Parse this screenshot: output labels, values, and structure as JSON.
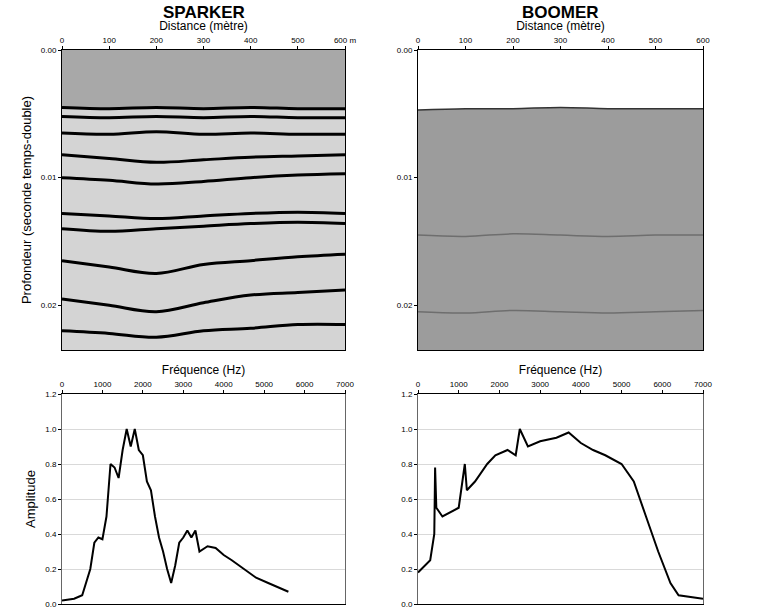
{
  "chart_data": [
    {
      "type": "seismic",
      "title": "SPARKER",
      "xlabel": "Distance (mètre)",
      "ylabel": "Profondeur (seconde temps-double)",
      "xlim": [
        0,
        600
      ],
      "xticks": [
        0,
        100,
        200,
        300,
        400,
        500,
        {
          "value": 600,
          "label": "600 m"
        }
      ],
      "ylim": [
        0,
        0.0235
      ],
      "yticks": [
        {
          "value": 0,
          "label": "0.00"
        },
        0.01,
        0.02
      ],
      "grid": false,
      "x": [
        0,
        100,
        200,
        300,
        400,
        500,
        600
      ],
      "series": [
        {
          "color": "#000000",
          "values": [
            0.0045,
            0.0046,
            0.0045,
            0.0046,
            0.0045,
            0.0046,
            0.0046
          ]
        },
        {
          "color": "#000000",
          "values": [
            0.0052,
            0.0053,
            0.0052,
            0.0053,
            0.0052,
            0.0053,
            0.0053
          ]
        },
        {
          "color": "#000000",
          "values": [
            0.0065,
            0.0066,
            0.0064,
            0.0066,
            0.0065,
            0.0066,
            0.0066
          ]
        },
        {
          "color": "#000000",
          "values": [
            0.0082,
            0.0085,
            0.0088,
            0.0086,
            0.0084,
            0.0083,
            0.0082
          ]
        },
        {
          "color": "#000000",
          "values": [
            0.01,
            0.0102,
            0.0105,
            0.0103,
            0.01,
            0.0098,
            0.0097
          ]
        },
        {
          "color": "#000000",
          "values": [
            0.0128,
            0.013,
            0.0132,
            0.013,
            0.0128,
            0.0127,
            0.0128
          ]
        },
        {
          "color": "#000000",
          "values": [
            0.014,
            0.0142,
            0.014,
            0.0138,
            0.0136,
            0.0135,
            0.0136
          ]
        },
        {
          "color": "#000000",
          "values": [
            0.0165,
            0.017,
            0.0175,
            0.0168,
            0.0165,
            0.0162,
            0.016
          ]
        },
        {
          "color": "#000000",
          "values": [
            0.0195,
            0.02,
            0.0205,
            0.0198,
            0.0192,
            0.019,
            0.0188
          ]
        },
        {
          "color": "#000000",
          "values": [
            0.022,
            0.0222,
            0.0225,
            0.022,
            0.0218,
            0.0215,
            0.0215
          ]
        }
      ]
    },
    {
      "type": "seismic",
      "title": "BOOMER",
      "xlabel": "Distance (mètre)",
      "xlim": [
        0,
        600
      ],
      "xticks": [
        0,
        100,
        200,
        300,
        400,
        500,
        600
      ],
      "ylim": [
        0,
        0.0235
      ],
      "yticks": [
        {
          "value": 0,
          "label": "0.00"
        },
        0.01,
        0.02
      ],
      "grid": false,
      "x": [
        0,
        100,
        200,
        300,
        400,
        500,
        600
      ],
      "series": [
        {
          "color": "#333333",
          "values": [
            0.0047,
            0.0046,
            0.0046,
            0.0045,
            0.0046,
            0.0046,
            0.0046
          ]
        },
        {
          "color": "#6e6e6e",
          "values": [
            0.0145,
            0.0146,
            0.0144,
            0.0145,
            0.0146,
            0.0145,
            0.0145
          ]
        },
        {
          "color": "#6e6e6e",
          "values": [
            0.0205,
            0.0206,
            0.0204,
            0.0205,
            0.0206,
            0.0205,
            0.0204
          ]
        }
      ]
    },
    {
      "type": "line",
      "xlabel": "Fréquence (Hz)",
      "ylabel": "Amplitude",
      "color": "#000000",
      "grid": true,
      "xlim": [
        0,
        7000
      ],
      "xticks": [
        0,
        1000,
        2000,
        3000,
        4000,
        5000,
        6000,
        7000
      ],
      "ylim": [
        0,
        1.2
      ],
      "yticks": [
        {
          "value": 0,
          "label": "0.0"
        },
        0.2,
        0.4,
        0.6,
        0.8,
        {
          "value": 1,
          "label": "1.0"
        },
        1.2
      ],
      "x": [
        0,
        300,
        500,
        600,
        700,
        800,
        900,
        1000,
        1100,
        1200,
        1300,
        1400,
        1500,
        1600,
        1700,
        1800,
        1900,
        2000,
        2100,
        2200,
        2300,
        2400,
        2500,
        2600,
        2700,
        2800,
        2900,
        3000,
        3100,
        3200,
        3300,
        3400,
        3600,
        3800,
        4000,
        4200,
        4500,
        4800,
        5100,
        5600
      ],
      "values": [
        0.02,
        0.03,
        0.05,
        0.12,
        0.2,
        0.35,
        0.38,
        0.37,
        0.5,
        0.8,
        0.78,
        0.72,
        0.88,
        1.0,
        0.9,
        1.0,
        0.88,
        0.85,
        0.7,
        0.65,
        0.5,
        0.38,
        0.3,
        0.2,
        0.12,
        0.22,
        0.35,
        0.38,
        0.42,
        0.38,
        0.42,
        0.3,
        0.33,
        0.32,
        0.28,
        0.25,
        0.2,
        0.15,
        0.12,
        0.07
      ]
    },
    {
      "type": "line",
      "xlabel": "Fréquence (Hz)",
      "color": "#000000",
      "grid": true,
      "xlim": [
        0,
        7000
      ],
      "xticks": [
        0,
        1000,
        2000,
        3000,
        4000,
        5000,
        6000,
        7000
      ],
      "ylim": [
        0,
        1.2
      ],
      "yticks": [
        {
          "value": 0,
          "label": "0.0"
        },
        0.2,
        0.4,
        0.6,
        0.8,
        {
          "value": 1,
          "label": "1.0"
        },
        1.2
      ],
      "x": [
        0,
        300,
        400,
        420,
        450,
        600,
        1000,
        1150,
        1200,
        1400,
        1700,
        1900,
        2200,
        2400,
        2500,
        2700,
        3000,
        3400,
        3700,
        4000,
        4300,
        4600,
        5000,
        5300,
        5600,
        5900,
        6200,
        6400,
        7000
      ],
      "values": [
        0.18,
        0.25,
        0.4,
        0.78,
        0.55,
        0.5,
        0.55,
        0.8,
        0.65,
        0.7,
        0.8,
        0.85,
        0.88,
        0.85,
        1.0,
        0.9,
        0.93,
        0.95,
        0.98,
        0.92,
        0.88,
        0.85,
        0.8,
        0.7,
        0.5,
        0.3,
        0.12,
        0.05,
        0.03
      ]
    }
  ]
}
